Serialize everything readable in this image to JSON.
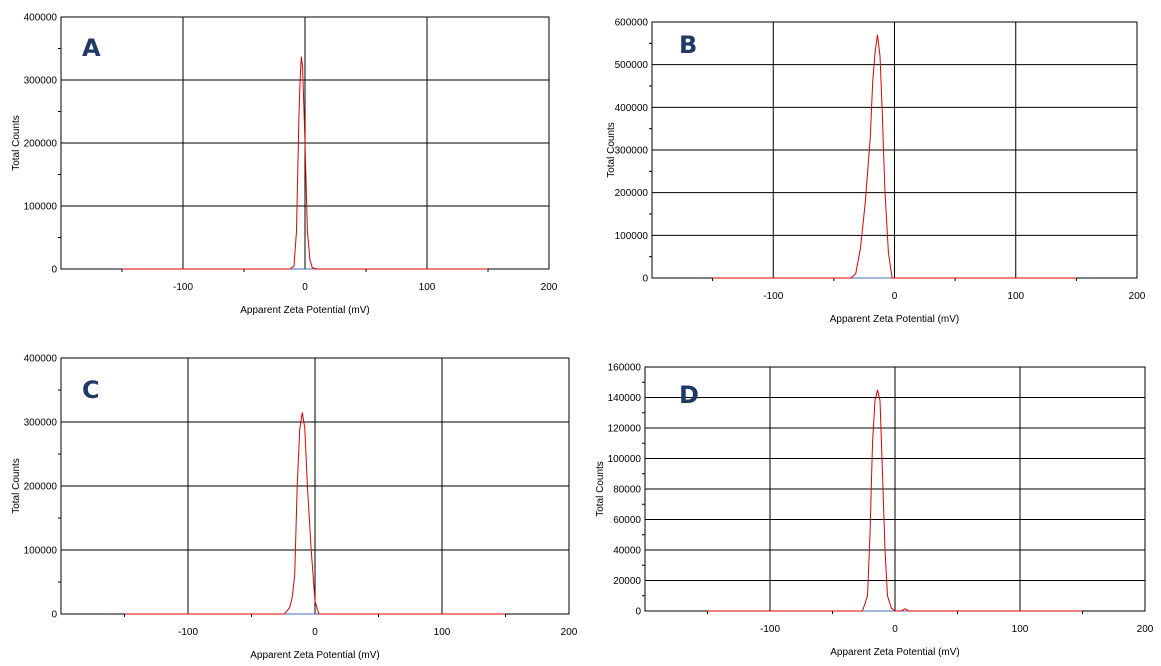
{
  "chart_data": [
    {
      "type": "line",
      "panel_label": "A",
      "title": "",
      "xlabel": "Apparent Zeta Potential (mV)",
      "ylabel": "Total Counts",
      "xlim": [
        -200,
        200
      ],
      "ylim": [
        0,
        400000
      ],
      "x_ticks": [
        -100,
        0,
        100,
        200
      ],
      "y_ticks": [
        0,
        100000,
        200000,
        300000,
        400000
      ],
      "grid": true,
      "series": [
        {
          "color": "#e00000",
          "x": [
            -150,
            -100,
            -50,
            -12,
            -9,
            -7,
            -5,
            -4,
            -3,
            -2,
            0,
            2,
            4,
            6,
            10,
            50,
            100,
            150
          ],
          "values": [
            0,
            0,
            0,
            0,
            5000,
            60000,
            240000,
            300000,
            337000,
            320000,
            200000,
            60000,
            15000,
            2000,
            0,
            0,
            0,
            0
          ]
        }
      ]
    },
    {
      "type": "line",
      "panel_label": "B",
      "title": "",
      "xlabel": "Apparent Zeta Potential (mV)",
      "ylabel": "Total Counts",
      "xlim": [
        -200,
        200
      ],
      "ylim": [
        0,
        600000
      ],
      "x_ticks": [
        -100,
        0,
        100,
        200
      ],
      "y_ticks": [
        0,
        100000,
        200000,
        300000,
        400000,
        500000,
        600000
      ],
      "grid": true,
      "series": [
        {
          "color": "#e00000",
          "x": [
            -150,
            -100,
            -50,
            -36,
            -32,
            -28,
            -24,
            -20,
            -18,
            -16,
            -14,
            -12,
            -10,
            -8,
            -5,
            -2,
            0,
            50,
            100,
            150
          ],
          "values": [
            0,
            0,
            0,
            0,
            10000,
            70000,
            180000,
            330000,
            460000,
            530000,
            570000,
            520000,
            380000,
            210000,
            60000,
            0,
            0,
            0,
            0,
            0
          ]
        }
      ]
    },
    {
      "type": "line",
      "panel_label": "C",
      "title": "",
      "xlabel": "Apparent Zeta Potential (mV)",
      "ylabel": "Total Counts",
      "xlim": [
        -200,
        200
      ],
      "ylim": [
        0,
        400000
      ],
      "x_ticks": [
        -100,
        0,
        100,
        200
      ],
      "y_ticks": [
        0,
        100000,
        200000,
        300000,
        400000
      ],
      "grid": true,
      "series": [
        {
          "color": "#e00000",
          "x": [
            -150,
            -100,
            -50,
            -24,
            -20,
            -18,
            -16,
            -14,
            -12,
            -10,
            -8,
            -6,
            -3,
            0,
            3,
            50,
            100,
            150
          ],
          "values": [
            0,
            0,
            0,
            0,
            10000,
            25000,
            60000,
            200000,
            290000,
            315000,
            290000,
            200000,
            100000,
            20000,
            0,
            0,
            0,
            0
          ]
        }
      ]
    },
    {
      "type": "line",
      "panel_label": "D",
      "title": "",
      "xlabel": "Apparent Zeta Potential (mV)",
      "ylabel": "Total Counts",
      "xlim": [
        -200,
        200
      ],
      "ylim": [
        0,
        160000
      ],
      "x_ticks": [
        -100,
        0,
        100,
        200
      ],
      "y_ticks": [
        0,
        20000,
        40000,
        60000,
        80000,
        100000,
        120000,
        140000,
        160000
      ],
      "grid": true,
      "series": [
        {
          "color": "#e00000",
          "x": [
            -150,
            -100,
            -50,
            -26,
            -22,
            -20,
            -18,
            -16,
            -14,
            -12,
            -10,
            -8,
            -6,
            -3,
            0,
            5,
            8,
            11,
            50,
            100,
            150
          ],
          "values": [
            0,
            0,
            0,
            0,
            10000,
            50000,
            110000,
            138000,
            145000,
            138000,
            90000,
            40000,
            10000,
            2000,
            0,
            0,
            1500,
            0,
            0,
            0,
            0
          ]
        }
      ]
    }
  ]
}
